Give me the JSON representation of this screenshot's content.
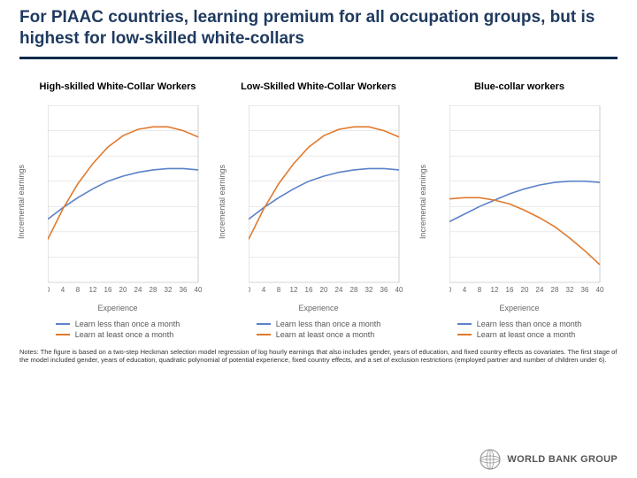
{
  "title": "For PIAAC countries, learning premium for all occupation groups, but is highest for low-skilled white-collars",
  "ylabel": "Incremental earnings",
  "xlabel": "Experience",
  "ylim": [
    -0.2,
    0.5
  ],
  "yticks": [
    -0.2,
    -0.1,
    0,
    0.1,
    0.2,
    0.3,
    0.4,
    0.5
  ],
  "xlim": [
    0,
    40
  ],
  "xticks": [
    0,
    4,
    8,
    12,
    16,
    20,
    24,
    28,
    32,
    36,
    40
  ],
  "grid_color": "#dddddd",
  "axis_color": "#cccccc",
  "plot_bg": "#ffffff",
  "line_width": 1.6,
  "panels": [
    {
      "title": "High-skilled White-Collar Workers",
      "series": [
        {
          "color": "#5b82c9",
          "points": [
            [
              0,
              0.05
            ],
            [
              4,
              0.095
            ],
            [
              8,
              0.135
            ],
            [
              12,
              0.17
            ],
            [
              16,
              0.2
            ],
            [
              20,
              0.22
            ],
            [
              24,
              0.235
            ],
            [
              28,
              0.245
            ],
            [
              32,
              0.25
            ],
            [
              36,
              0.25
            ],
            [
              40,
              0.245
            ]
          ]
        },
        {
          "color": "#e07a2e",
          "points": [
            [
              0,
              -0.03
            ],
            [
              4,
              0.09
            ],
            [
              8,
              0.19
            ],
            [
              12,
              0.27
            ],
            [
              16,
              0.335
            ],
            [
              20,
              0.38
            ],
            [
              24,
              0.405
            ],
            [
              28,
              0.415
            ],
            [
              32,
              0.415
            ],
            [
              36,
              0.4
            ],
            [
              40,
              0.375
            ]
          ]
        }
      ]
    },
    {
      "title": "Low-Skilled White-Collar Workers",
      "series": [
        {
          "color": "#5b82c9",
          "points": [
            [
              0,
              0.05
            ],
            [
              4,
              0.095
            ],
            [
              8,
              0.135
            ],
            [
              12,
              0.17
            ],
            [
              16,
              0.2
            ],
            [
              20,
              0.22
            ],
            [
              24,
              0.235
            ],
            [
              28,
              0.245
            ],
            [
              32,
              0.25
            ],
            [
              36,
              0.25
            ],
            [
              40,
              0.245
            ]
          ]
        },
        {
          "color": "#e07a2e",
          "points": [
            [
              0,
              -0.03
            ],
            [
              4,
              0.09
            ],
            [
              8,
              0.19
            ],
            [
              12,
              0.27
            ],
            [
              16,
              0.335
            ],
            [
              20,
              0.38
            ],
            [
              24,
              0.405
            ],
            [
              28,
              0.415
            ],
            [
              32,
              0.415
            ],
            [
              36,
              0.4
            ],
            [
              40,
              0.375
            ]
          ]
        }
      ]
    },
    {
      "title": "Blue-collar workers",
      "series": [
        {
          "color": "#5b82c9",
          "points": [
            [
              0,
              0.04
            ],
            [
              4,
              0.07
            ],
            [
              8,
              0.1
            ],
            [
              12,
              0.125
            ],
            [
              16,
              0.15
            ],
            [
              20,
              0.17
            ],
            [
              24,
              0.185
            ],
            [
              28,
              0.195
            ],
            [
              32,
              0.2
            ],
            [
              36,
              0.2
            ],
            [
              40,
              0.195
            ]
          ]
        },
        {
          "color": "#e07a2e",
          "points": [
            [
              0,
              0.13
            ],
            [
              4,
              0.135
            ],
            [
              8,
              0.135
            ],
            [
              12,
              0.125
            ],
            [
              16,
              0.11
            ],
            [
              20,
              0.085
            ],
            [
              24,
              0.055
            ],
            [
              28,
              0.02
            ],
            [
              32,
              -0.025
            ],
            [
              36,
              -0.075
            ],
            [
              40,
              -0.13
            ]
          ]
        }
      ]
    }
  ],
  "legend": [
    {
      "color": "#5b82c9",
      "label": "Learn less than once a month"
    },
    {
      "color": "#e07a2e",
      "label": "Learn at least once a month"
    }
  ],
  "notes": "Notes: The figure is based on a two-step Heckman selection model regression of log hourly earnings that also includes gender, years of education, and fixed country effects as covariates. The first stage of the model included gender, years of education, quadratic polynomial of potential experience, fixed country effects, and a set of exclusion restrictions (employed partner and number of children under 6).",
  "logo_text": "WORLD BANK GROUP",
  "logo_globe_fill": "#ffffff",
  "logo_globe_stroke": "#8a8a8a"
}
